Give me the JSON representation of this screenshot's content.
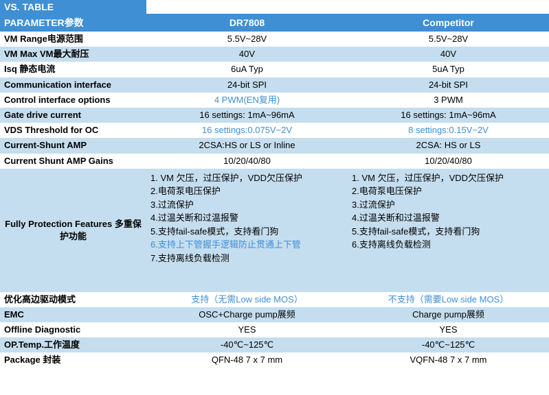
{
  "title": "VS. TABLE",
  "header": {
    "param": "PARAMETER参数",
    "colA": "DR7808",
    "colB": "Competitor"
  },
  "rows": [
    {
      "shade": false,
      "param": "VM Range电源范围",
      "a": "5.5V~28V",
      "b": "5.5V~28V"
    },
    {
      "shade": true,
      "param": "VM Max VM最大耐压",
      "a": "40V",
      "b": "40V"
    },
    {
      "shade": false,
      "param": "Isq 静态电流",
      "a": "6uA Typ",
      "b": "5uA Typ"
    },
    {
      "shade": true,
      "param": "Communication interface",
      "a": "24-bit SPI",
      "b": "24-bit SPI"
    },
    {
      "shade": false,
      "param": "Control interface options",
      "a": "4 PWM(EN复用)",
      "aHl": true,
      "b": "3 PWM"
    },
    {
      "shade": true,
      "param": "Gate drive current",
      "a": "16 settings: 1mA~96mA",
      "b": "16 settings: 1mA~96mA"
    },
    {
      "shade": false,
      "param": "VDS Threshold for OC",
      "a": "16 settings:0.075V~2V",
      "aHl": true,
      "b": "8 settings:0.15V~2V",
      "bHl": true
    },
    {
      "shade": true,
      "param": "Current-Shunt AMP",
      "a": "2CSA:HS or LS or Inline",
      "b": "2CSA: HS or LS"
    },
    {
      "shade": false,
      "param": "Current Shunt AMP Gains",
      "a": "10/20/40/80",
      "b": "10/20/40/80"
    }
  ],
  "protection": {
    "param": "Fully Protection Features 多重保护功能",
    "a": [
      {
        "t": "1. VM 欠压，过压保护，VDD欠压保护"
      },
      {
        "t": "2.电荷泵电压保护"
      },
      {
        "t": "3.过流保护"
      },
      {
        "t": "4.过温关断和过温报警"
      },
      {
        "t": "5.支持fail-safe模式，支持看门狗"
      },
      {
        "t": "6.支持上下管握手逻辑防止贯通上下管",
        "hl": true
      },
      {
        "t": "7.支持离线负载检测"
      }
    ],
    "b": [
      {
        "t": "1. VM 欠压，过压保护，VDD欠压保护"
      },
      {
        "t": "2.电荷泵电压保护"
      },
      {
        "t": "3.过流保护"
      },
      {
        "t": "4.过温关断和过温报警"
      },
      {
        "t": "5.支持fail-safe模式，支持看门狗"
      },
      {
        "t": "6.支持离线负载检测"
      }
    ]
  },
  "rows2": [
    {
      "shade": false,
      "param": "优化高边驱动模式",
      "a": "支持（无需Low side MOS）",
      "aHl": true,
      "b": "不支持（需要Low side MOS）",
      "bHl": true
    },
    {
      "shade": true,
      "param": "EMC",
      "a": "OSC+Charge pump展频",
      "b": "Charge pump展频"
    },
    {
      "shade": false,
      "param": "Offline Diagnostic",
      "a": "YES",
      "b": "YES"
    },
    {
      "shade": true,
      "param": "OP.Temp.工作温度",
      "a": "-40℃~125℃",
      "b": "-40℃~125℃"
    },
    {
      "shade": false,
      "param": "Package 封装",
      "a": "QFN-48 7 x 7 mm",
      "b": "VQFN-48 7 x 7 mm"
    }
  ],
  "colors": {
    "header_bg": "#3e8fd4",
    "header_fg": "#ffffff",
    "shade_bg": "#c5deef",
    "highlight_fg": "#3e8fd4",
    "text_fg": "#000000"
  }
}
